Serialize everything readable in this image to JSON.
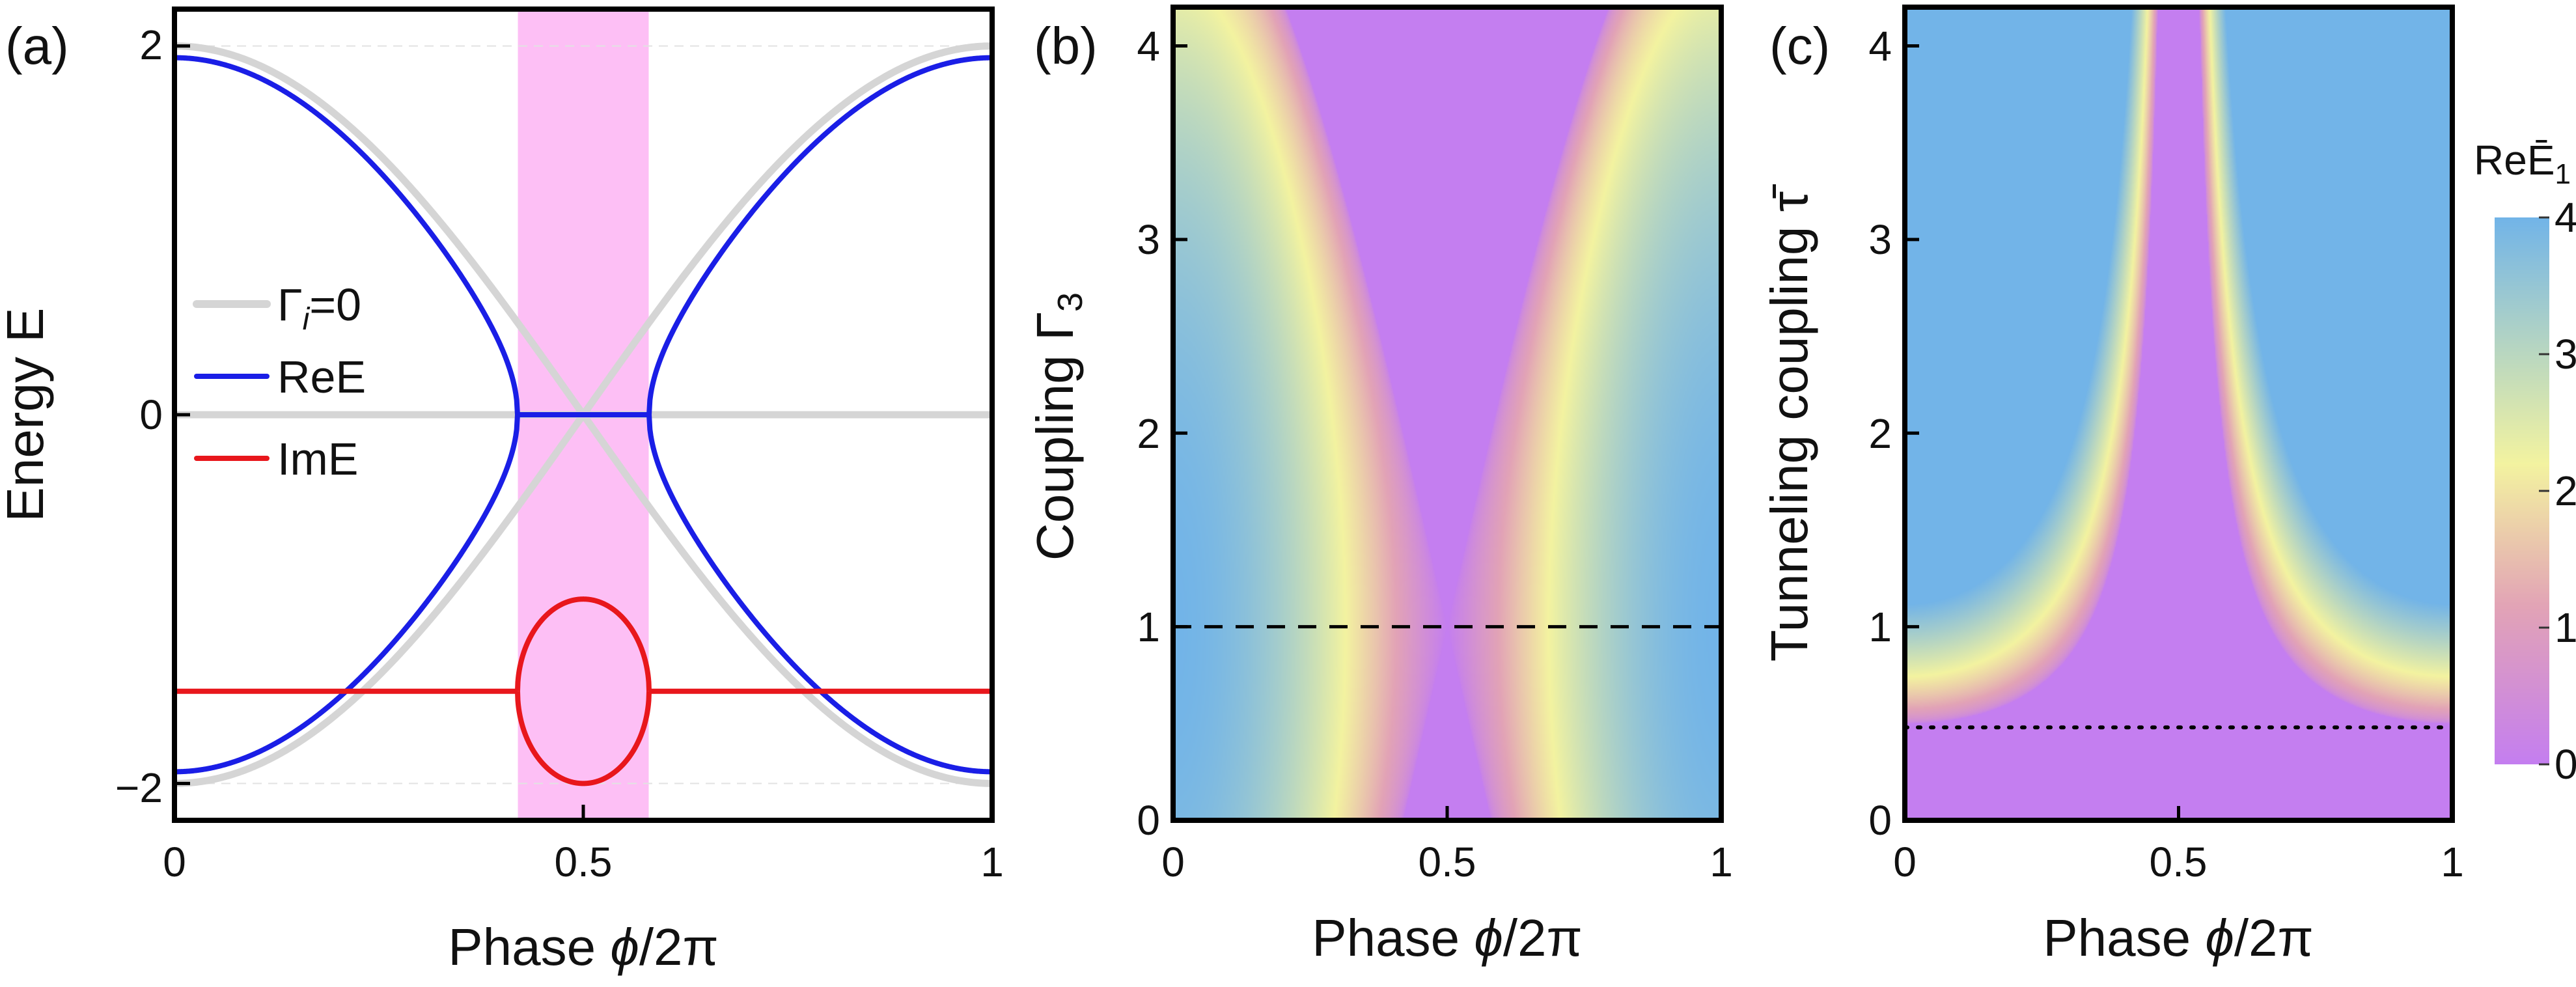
{
  "colors": {
    "purple": "#c47ef0",
    "mauve": "#e2a3b6",
    "yellow": "#f3f3a0",
    "blue": "#72b4e8",
    "pink_band": "#fdbff5",
    "real_curve": "#1a1ee6",
    "imag_curve": "#e8171c",
    "gamma0_curve": "#d5d5d5",
    "dashed": "#000000"
  },
  "chart_data": [
    {
      "id": "a",
      "type": "line",
      "panel_label": "(a)",
      "xlabel_prefix": "Phase ",
      "xlabel_var": "ϕ",
      "xlabel_suffix": "/2π",
      "ylabel": "Energy E",
      "xlim": [
        0,
        1
      ],
      "ylim": [
        -2.2,
        2.2
      ],
      "xticks": [
        "0",
        "0.5",
        "1"
      ],
      "xtick_values": [
        0,
        0.5,
        1
      ],
      "yticks": [
        "−2",
        "0",
        "2"
      ],
      "ytick_values": [
        -2,
        0,
        2
      ],
      "gridlines_y": [
        -2,
        2
      ],
      "shaded_band_x": [
        0.42,
        0.58
      ],
      "legend": [
        {
          "label_main": "Γ",
          "label_sub": "i",
          "label_tail": "=0",
          "color": "#d5d5d5"
        },
        {
          "label_main": "ReE",
          "label_sub": "",
          "label_tail": "",
          "color": "#1a1ee6"
        },
        {
          "label_main": "ImE",
          "label_sub": "",
          "label_tail": "",
          "color": "#e8171c"
        }
      ],
      "model": {
        "description": "E = ±sqrt(4cos^2(ϕ/2) − Γ^2), Γ = 0.5; Im part shifted by −1.5",
        "gamma0_amplitude": 2.0,
        "gamma": 0.5,
        "imag_offset": -1.5
      },
      "series": [
        {
          "name": "Γi=0",
          "x": [
            0,
            0.1,
            0.2,
            0.3,
            0.4,
            0.5,
            0.6,
            0.7,
            0.8,
            0.9,
            1
          ],
          "y_upper": [
            2.0,
            1.9,
            1.62,
            1.18,
            0.62,
            0.0,
            -0.62,
            -1.18,
            -1.62,
            -1.9,
            -2.0
          ],
          "y_lower": [
            -2.0,
            -1.9,
            -1.62,
            -1.18,
            -0.62,
            0.0,
            0.62,
            1.18,
            1.62,
            1.9,
            2.0
          ],
          "y_flat": 0
        },
        {
          "name": "ReE",
          "x": [
            0,
            0.1,
            0.2,
            0.3,
            0.4,
            0.42,
            0.5,
            0.58,
            0.6,
            0.7,
            0.8,
            0.9,
            1
          ],
          "y_upper": [
            1.94,
            1.84,
            1.54,
            1.07,
            0.39,
            0.0,
            0.0,
            0.0,
            0.39,
            1.07,
            1.54,
            1.84,
            1.94
          ]
        },
        {
          "name": "ImE",
          "x": [
            0,
            0.42,
            0.5,
            0.58,
            1
          ],
          "y": [
            -1.5,
            -1.5,
            -1.0,
            -1.5,
            -1.5
          ],
          "y_lower_loop": [
            -1.5,
            -1.5,
            -2.0,
            -1.5,
            -1.5
          ]
        }
      ]
    },
    {
      "id": "b",
      "type": "heatmap",
      "panel_label": "(b)",
      "xlabel_prefix": "Phase ",
      "xlabel_var": "ϕ",
      "xlabel_suffix": "/2π",
      "ylabel_main": "Coupling Γ",
      "ylabel_sub": "3",
      "xlim": [
        0,
        1
      ],
      "ylim": [
        0,
        4.2
      ],
      "xticks": [
        "0",
        "0.5",
        "1"
      ],
      "xtick_values": [
        0,
        0.5,
        1
      ],
      "yticks": [
        "0",
        "1",
        "2",
        "3",
        "4"
      ],
      "ytick_values": [
        0,
        1,
        2,
        3,
        4
      ],
      "value": "Re Ē1 = Re sqrt(16cos^2(πx) − (y−1)^2)",
      "dashed_line_y": 1
    },
    {
      "id": "c",
      "type": "heatmap",
      "panel_label": "(c)",
      "xlabel_prefix": "Phase ",
      "xlabel_var": "ϕ",
      "xlabel_suffix": "/2π",
      "ylabel": "Tunneling coupling τ̄",
      "xlim": [
        0,
        1
      ],
      "ylim": [
        0,
        4.2
      ],
      "xticks": [
        "0",
        "0.5",
        "1"
      ],
      "xtick_values": [
        0,
        0.5,
        1
      ],
      "yticks": [
        "0",
        "1",
        "2",
        "3",
        "4"
      ],
      "ytick_values": [
        0,
        1,
        2,
        3,
        4
      ],
      "value": "Re Ē1 = Re sqrt(16·y^2·cos^2(πx) − 4), clipped to [0,4]",
      "dotted_line_y": 0.48,
      "colorbar": {
        "title_main": "Re",
        "title_var": "Ē",
        "title_sub": "1",
        "range": [
          0,
          4
        ],
        "ticks": [
          "0",
          "1",
          "2",
          "3",
          "4"
        ],
        "tick_values": [
          0,
          1,
          2,
          3,
          4
        ]
      }
    }
  ]
}
